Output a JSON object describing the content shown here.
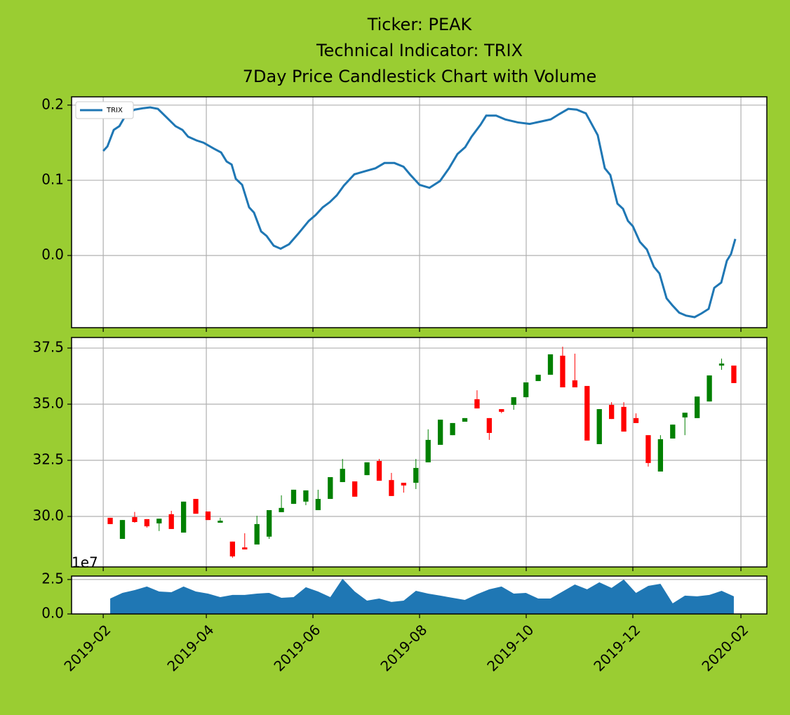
{
  "chart_data": [
    {
      "type": "line",
      "title": [
        "Ticker: PEAK",
        "Technical Indicator: TRIX",
        "7Day Price Candlestick Chart with Volume"
      ],
      "legend": "upper left",
      "grid": true,
      "ylim": [
        -0.096,
        0.211
      ],
      "yticks": [
        {
          "value": 0,
          "label": "0.0"
        },
        0.1,
        0.2
      ],
      "series": [
        {
          "name": "TRIX",
          "color": "#1f77b4",
          "x": [
            -0.57,
            -0.23,
            0.29,
            0.75,
            1.32,
            2.01,
            2.75,
            3.27,
            3.9,
            4.59,
            5.34,
            5.91,
            6.37,
            7.06,
            7.63,
            8.49,
            9.07,
            9.52,
            9.93,
            10.27,
            10.79,
            11.36,
            11.76,
            12.34,
            12.79,
            13.37,
            13.94,
            14.63,
            15.38,
            16.24,
            16.81,
            17.38,
            17.96,
            18.53,
            19.11,
            19.97,
            20.83,
            21.69,
            22.43,
            23.24,
            23.99,
            24.56,
            25.3,
            26.11,
            26.97,
            27.71,
            28.4,
            29.03,
            29.55,
            30.29,
            30.75,
            31.56,
            32.3,
            33.33,
            34.31,
            35.17,
            36.03,
            36.72,
            37.46,
            38.15,
            38.9,
            39.47,
            39.87,
            40.45,
            40.9,
            41.48,
            41.94,
            42.34,
            42.74,
            43.32,
            43.89,
            44.46,
            44.92,
            45.5,
            45.96,
            46.53,
            47.1,
            47.79,
            48.36,
            48.94,
            49.4,
            49.97,
            50.43,
            50.77,
            51.12
          ],
          "values": [
            0.139,
            0.145,
            0.167,
            0.172,
            0.188,
            0.194,
            0.196,
            0.197,
            0.195,
            0.184,
            0.172,
            0.167,
            0.158,
            0.153,
            0.15,
            0.142,
            0.137,
            0.125,
            0.121,
            0.102,
            0.094,
            0.064,
            0.057,
            0.032,
            0.026,
            0.013,
            0.009,
            0.015,
            0.029,
            0.046,
            0.054,
            0.064,
            0.071,
            0.08,
            0.093,
            0.108,
            0.112,
            0.116,
            0.123,
            0.123,
            0.118,
            0.107,
            0.094,
            0.09,
            0.099,
            0.116,
            0.135,
            0.144,
            0.158,
            0.174,
            0.186,
            0.186,
            0.181,
            0.177,
            0.175,
            0.178,
            0.181,
            0.188,
            0.195,
            0.194,
            0.189,
            0.172,
            0.16,
            0.116,
            0.107,
            0.069,
            0.062,
            0.046,
            0.039,
            0.018,
            0.008,
            -0.015,
            -0.024,
            -0.057,
            -0.066,
            -0.076,
            -0.08,
            -0.082,
            -0.077,
            -0.071,
            -0.043,
            -0.036,
            -0.007,
            0.002,
            0.022
          ]
        }
      ]
    },
    {
      "type": "candlestick",
      "grid": true,
      "up_color": "#008000",
      "down_color": "#ff0000",
      "ylim": [
        27.75,
        37.97
      ],
      "yticks": [
        {
          "value": 30,
          "label": "30.0"
        },
        32.5,
        {
          "value": 35,
          "label": "35.0"
        },
        37.5
      ],
      "open": [
        29.94,
        29.0,
        29.97,
        29.88,
        29.69,
        30.1,
        29.28,
        30.78,
        30.22,
        29.72,
        28.88,
        28.62,
        28.75,
        29.1,
        30.19,
        30.56,
        30.66,
        30.28,
        30.78,
        31.53,
        31.56,
        31.84,
        32.47,
        31.62,
        31.5,
        31.5,
        32.41,
        33.19,
        33.62,
        34.22,
        35.22,
        34.38,
        34.78,
        34.97,
        35.31,
        36.03,
        36.31,
        37.16,
        36.06,
        35.81,
        33.22,
        34.97,
        34.88,
        34.38,
        33.62,
        32.0,
        33.47,
        34.41,
        34.38,
        35.12,
        36.72,
        36.72
      ],
      "high": [
        29.94,
        29.84,
        30.2,
        29.88,
        29.9,
        30.25,
        30.66,
        30.78,
        30.22,
        29.94,
        28.88,
        29.25,
        30.03,
        30.28,
        30.94,
        31.19,
        31.16,
        31.19,
        31.75,
        32.56,
        31.56,
        32.41,
        32.56,
        31.94,
        31.5,
        32.56,
        33.88,
        34.31,
        34.16,
        34.38,
        35.62,
        34.38,
        34.78,
        35.31,
        35.97,
        36.31,
        37.22,
        37.56,
        37.25,
        35.81,
        34.78,
        35.09,
        35.09,
        34.59,
        33.62,
        33.62,
        34.09,
        34.62,
        35.34,
        36.28,
        37.03,
        36.72
      ],
      "low": [
        29.66,
        29.0,
        29.72,
        29.5,
        29.35,
        29.44,
        29.28,
        30.12,
        29.84,
        29.72,
        28.16,
        28.53,
        28.75,
        29.0,
        30.19,
        30.56,
        30.5,
        30.28,
        30.78,
        31.53,
        30.88,
        31.84,
        31.59,
        30.91,
        31.06,
        31.22,
        32.41,
        33.19,
        33.62,
        34.22,
        34.81,
        33.41,
        34.6,
        34.75,
        35.31,
        36.03,
        36.31,
        35.75,
        35.75,
        33.38,
        33.22,
        34.34,
        33.78,
        34.16,
        32.22,
        32.0,
        33.47,
        33.62,
        34.38,
        35.12,
        36.53,
        35.94
      ],
      "close": [
        29.66,
        29.84,
        29.75,
        29.56,
        29.9,
        29.44,
        30.66,
        30.12,
        29.84,
        29.81,
        28.22,
        28.53,
        29.66,
        30.28,
        30.38,
        31.19,
        31.16,
        30.78,
        31.75,
        32.12,
        30.88,
        32.41,
        31.59,
        30.91,
        31.38,
        32.16,
        33.41,
        34.31,
        34.16,
        34.38,
        34.81,
        33.72,
        34.66,
        35.31,
        35.97,
        36.31,
        37.22,
        35.75,
        35.75,
        33.38,
        34.78,
        34.34,
        33.78,
        34.16,
        32.38,
        33.44,
        34.09,
        34.62,
        35.34,
        36.28,
        36.81,
        35.94
      ]
    },
    {
      "type": "area",
      "grid": true,
      "color": "#1f77b4",
      "offset_label": "1e7",
      "ylim": [
        0,
        2.75
      ],
      "yticks": [
        {
          "value": 0,
          "label": "0.0"
        },
        2.5
      ],
      "xlim": [
        -3.16,
        53.7
      ],
      "xticks": [
        {
          "value": -0.57,
          "label": "2019-02"
        },
        {
          "value": 7.86,
          "label": "2019-04"
        },
        {
          "value": 16.58,
          "label": "2019-06"
        },
        {
          "value": 25.3,
          "label": "2019-08"
        },
        {
          "value": 34.02,
          "label": "2019-10"
        },
        {
          "value": 42.74,
          "label": "2019-12"
        },
        {
          "value": 51.58,
          "label": "2020-02"
        }
      ],
      "values": [
        1.12,
        1.53,
        1.73,
        1.99,
        1.63,
        1.58,
        1.99,
        1.63,
        1.48,
        1.22,
        1.38,
        1.38,
        1.48,
        1.53,
        1.17,
        1.22,
        1.94,
        1.63,
        1.22,
        2.55,
        1.63,
        0.97,
        1.12,
        0.87,
        0.97,
        1.68,
        1.48,
        1.33,
        1.17,
        1.02,
        1.43,
        1.79,
        1.99,
        1.48,
        1.53,
        1.12,
        1.12,
        1.63,
        2.14,
        1.79,
        2.3,
        1.89,
        2.5,
        1.53,
        2.04,
        2.19,
        0.77,
        1.33,
        1.28,
        1.38,
        1.68,
        1.28
      ]
    }
  ]
}
